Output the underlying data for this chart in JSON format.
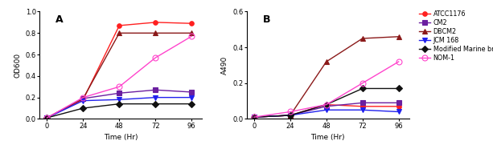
{
  "time": [
    0,
    24,
    48,
    72,
    96
  ],
  "panel_A": {
    "ylabel": "OD600",
    "ylim": [
      0,
      1.0
    ],
    "yticks": [
      0.0,
      0.2,
      0.4,
      0.6,
      0.8,
      1.0
    ],
    "series": {
      "ATCC1176": {
        "values": [
          0.01,
          0.18,
          0.87,
          0.9,
          0.89
        ],
        "color": "#FF2020",
        "marker": "o",
        "markersize": 4,
        "linestyle": "-",
        "fillstyle": "full"
      },
      "CM2": {
        "values": [
          0.01,
          0.19,
          0.24,
          0.27,
          0.25
        ],
        "color": "#6B1FA0",
        "marker": "s",
        "markersize": 4,
        "linestyle": "-",
        "fillstyle": "full"
      },
      "DBCM2": {
        "values": [
          0.01,
          0.19,
          0.8,
          0.8,
          0.8
        ],
        "color": "#8B1A1A",
        "marker": "^",
        "markersize": 4,
        "linestyle": "-",
        "fillstyle": "full"
      },
      "JCM 168": {
        "values": [
          0.01,
          0.17,
          0.18,
          0.2,
          0.2
        ],
        "color": "#2020EE",
        "marker": "v",
        "markersize": 4,
        "linestyle": "-",
        "fillstyle": "full"
      },
      "Modified Marine broth": {
        "values": [
          0.01,
          0.1,
          0.14,
          0.14,
          0.14
        ],
        "color": "#111111",
        "marker": "D",
        "markersize": 4,
        "linestyle": "-",
        "fillstyle": "full"
      },
      "NOM-1": {
        "values": [
          0.01,
          0.2,
          0.3,
          0.57,
          0.77
        ],
        "color": "#FF44CC",
        "marker": "o",
        "markersize": 5,
        "linestyle": "-",
        "fillstyle": "none"
      }
    }
  },
  "panel_B": {
    "ylabel": "A490",
    "ylim": [
      0,
      0.6
    ],
    "yticks": [
      0.0,
      0.2,
      0.4,
      0.6
    ],
    "series": {
      "ATCC1176": {
        "values": [
          0.01,
          0.02,
          0.08,
          0.07,
          0.07
        ],
        "color": "#FF2020",
        "marker": "o",
        "markersize": 4,
        "linestyle": "-",
        "fillstyle": "full"
      },
      "CM2": {
        "values": [
          0.01,
          0.02,
          0.07,
          0.09,
          0.09
        ],
        "color": "#6B1FA0",
        "marker": "s",
        "markersize": 4,
        "linestyle": "-",
        "fillstyle": "full"
      },
      "DBCM2": {
        "values": [
          0.01,
          0.02,
          0.32,
          0.45,
          0.46
        ],
        "color": "#8B1A1A",
        "marker": "^",
        "markersize": 4,
        "linestyle": "-",
        "fillstyle": "full"
      },
      "JCM 168": {
        "values": [
          0.01,
          0.02,
          0.05,
          0.05,
          0.04
        ],
        "color": "#2020EE",
        "marker": "v",
        "markersize": 4,
        "linestyle": "-",
        "fillstyle": "full"
      },
      "Modified Marine broth": {
        "values": [
          0.01,
          0.02,
          0.08,
          0.17,
          0.17
        ],
        "color": "#111111",
        "marker": "D",
        "markersize": 4,
        "linestyle": "-",
        "fillstyle": "full"
      },
      "NOM-1": {
        "values": [
          0.01,
          0.04,
          0.08,
          0.2,
          0.32
        ],
        "color": "#FF44CC",
        "marker": "o",
        "markersize": 5,
        "linestyle": "-",
        "fillstyle": "none"
      }
    }
  },
  "legend_order": [
    "ATCC1176",
    "CM2",
    "DBCM2",
    "JCM 168",
    "Modified Marine broth",
    "NOM-1"
  ],
  "xlabel": "Time (Hr)",
  "xticks": [
    0,
    24,
    48,
    72,
    96
  ],
  "background_color": "#FFFFFF"
}
